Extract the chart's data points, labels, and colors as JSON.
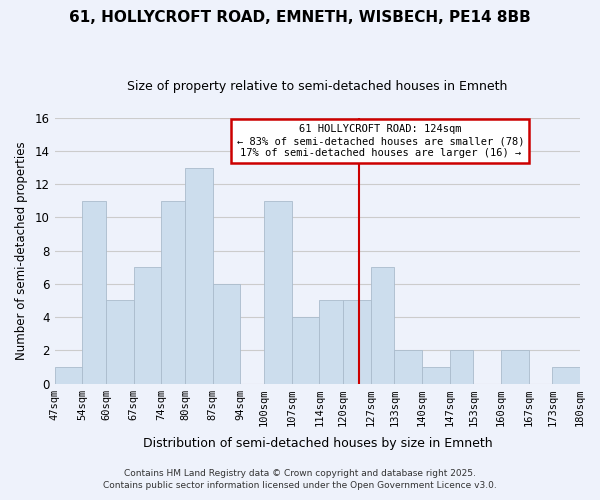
{
  "title": "61, HOLLYCROFT ROAD, EMNETH, WISBECH, PE14 8BB",
  "subtitle": "Size of property relative to semi-detached houses in Emneth",
  "xlabel": "Distribution of semi-detached houses by size in Emneth",
  "ylabel": "Number of semi-detached properties",
  "bins": [
    47,
    54,
    60,
    67,
    74,
    80,
    87,
    94,
    100,
    107,
    114,
    120,
    127,
    133,
    140,
    147,
    153,
    160,
    167,
    173,
    180
  ],
  "counts": [
    1,
    11,
    5,
    7,
    11,
    13,
    6,
    0,
    11,
    4,
    5,
    5,
    7,
    2,
    1,
    2,
    0,
    2,
    0,
    1
  ],
  "bar_color": "#ccdded",
  "bar_edge_color": "#aabbcc",
  "bar_linewidth": 0.6,
  "vline_x": 124,
  "vline_color": "#cc0000",
  "annotation_title": "61 HOLLYCROFT ROAD: 124sqm",
  "annotation_line1": "← 83% of semi-detached houses are smaller (78)",
  "annotation_line2": "17% of semi-detached houses are larger (16) →",
  "annotation_box_color": "#ffffff",
  "annotation_box_edge": "#cc0000",
  "ylim": [
    0,
    16
  ],
  "yticks": [
    0,
    2,
    4,
    6,
    8,
    10,
    12,
    14,
    16
  ],
  "grid_color": "#cccccc",
  "background_color": "#eef2fb",
  "footer1": "Contains HM Land Registry data © Crown copyright and database right 2025.",
  "footer2": "Contains public sector information licensed under the Open Government Licence v3.0.",
  "tick_labels": [
    "47sqm",
    "54sqm",
    "60sqm",
    "67sqm",
    "74sqm",
    "80sqm",
    "87sqm",
    "94sqm",
    "100sqm",
    "107sqm",
    "114sqm",
    "120sqm",
    "127sqm",
    "133sqm",
    "140sqm",
    "147sqm",
    "153sqm",
    "160sqm",
    "167sqm",
    "173sqm",
    "180sqm"
  ]
}
